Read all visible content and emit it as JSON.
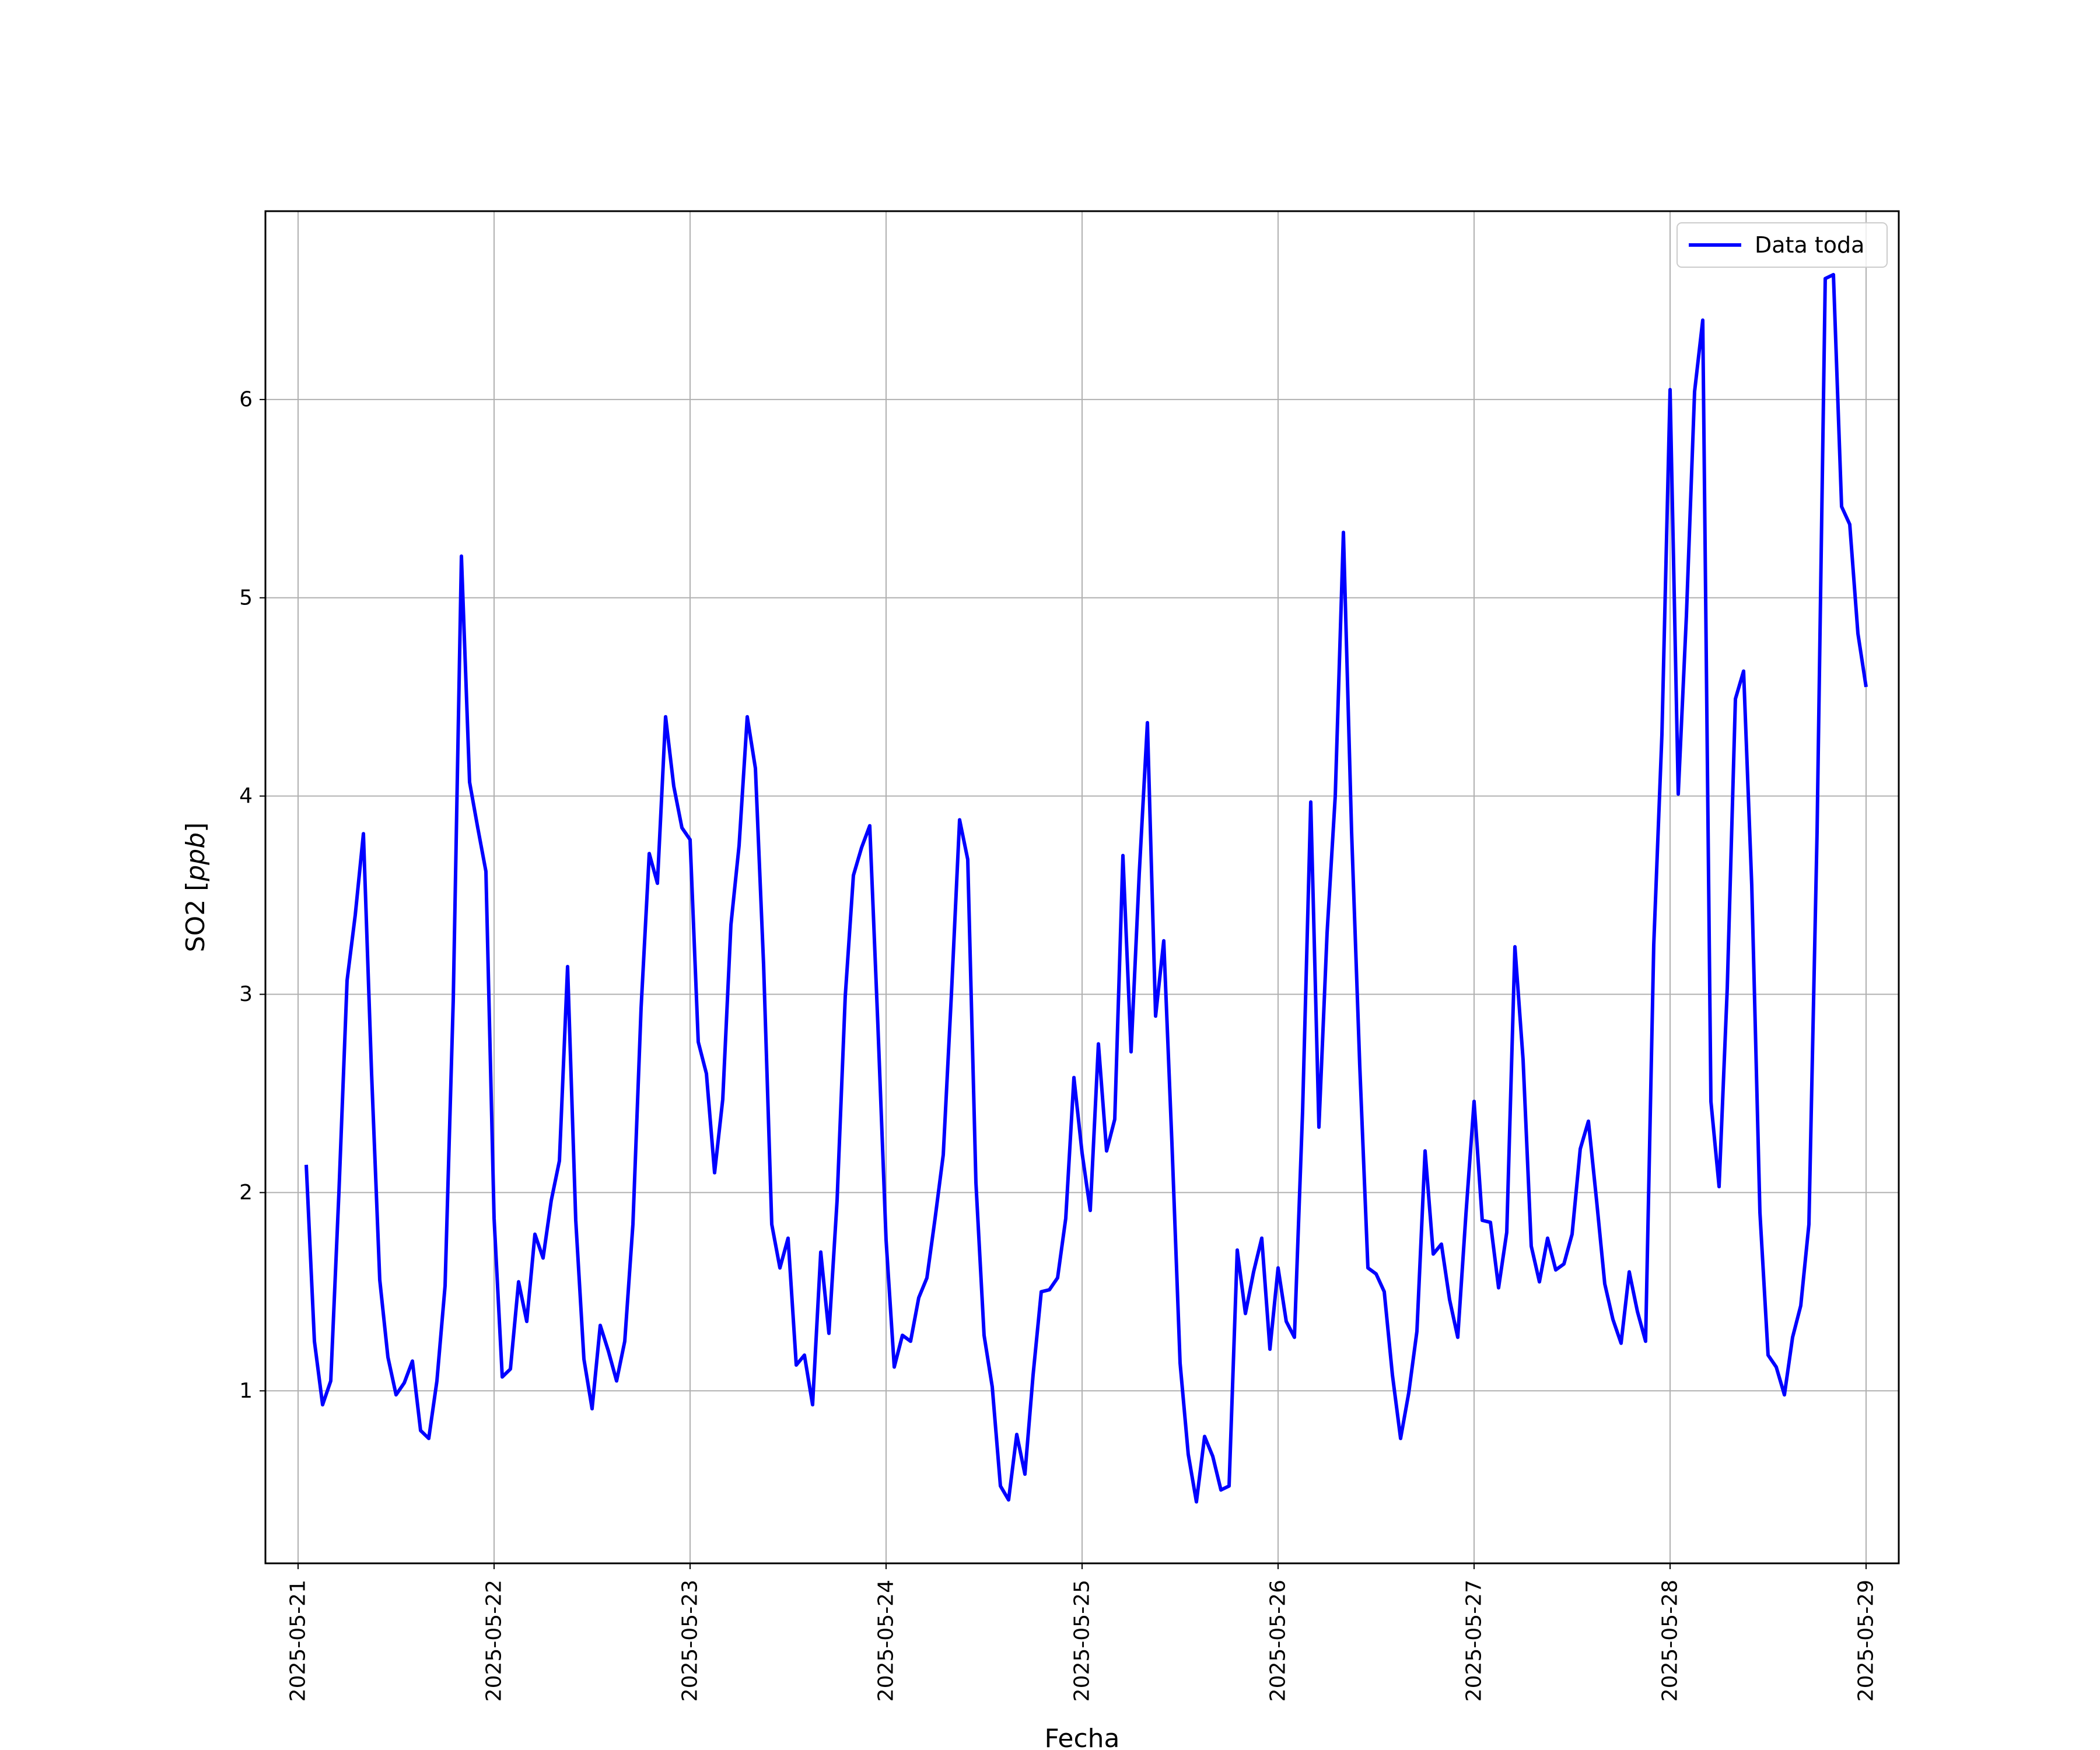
{
  "chart_data": {
    "type": "line",
    "title": "",
    "xlabel": "Fecha",
    "ylabel": "SO2",
    "ylabel_unit": "ppb",
    "xlim": [
      "2025-05-20T20:00",
      "2025-05-29T04:00"
    ],
    "ylim": [
      0.13,
      6.95
    ],
    "x_ticks": [
      "2025-05-21",
      "2025-05-22",
      "2025-05-23",
      "2025-05-24",
      "2025-05-25",
      "2025-05-26",
      "2025-05-27",
      "2025-05-28",
      "2025-05-29"
    ],
    "y_ticks": [
      1,
      2,
      3,
      4,
      5,
      6
    ],
    "grid": true,
    "legend_position": "top-right",
    "series": [
      {
        "name": "Data toda",
        "color": "#0000ff",
        "x": [
          "2025-05-21T01:00",
          "2025-05-21T02:00",
          "2025-05-21T03:00",
          "2025-05-21T04:00",
          "2025-05-21T05:00",
          "2025-05-21T06:00",
          "2025-05-21T07:00",
          "2025-05-21T08:00",
          "2025-05-21T09:00",
          "2025-05-21T10:00",
          "2025-05-21T11:00",
          "2025-05-21T12:00",
          "2025-05-21T13:00",
          "2025-05-21T14:00",
          "2025-05-21T15:00",
          "2025-05-21T16:00",
          "2025-05-21T17:00",
          "2025-05-21T18:00",
          "2025-05-21T19:00",
          "2025-05-21T20:00",
          "2025-05-21T21:00",
          "2025-05-21T22:00",
          "2025-05-21T23:00",
          "2025-05-22T00:00",
          "2025-05-22T01:00",
          "2025-05-22T02:00",
          "2025-05-22T03:00",
          "2025-05-22T04:00",
          "2025-05-22T05:00",
          "2025-05-22T06:00",
          "2025-05-22T07:00",
          "2025-05-22T08:00",
          "2025-05-22T09:00",
          "2025-05-22T10:00",
          "2025-05-22T11:00",
          "2025-05-22T12:00",
          "2025-05-22T13:00",
          "2025-05-22T14:00",
          "2025-05-22T15:00",
          "2025-05-22T16:00",
          "2025-05-22T17:00",
          "2025-05-22T18:00",
          "2025-05-22T19:00",
          "2025-05-22T20:00",
          "2025-05-22T21:00",
          "2025-05-22T22:00",
          "2025-05-22T23:00",
          "2025-05-23T00:00",
          "2025-05-23T01:00",
          "2025-05-23T02:00",
          "2025-05-23T03:00",
          "2025-05-23T04:00",
          "2025-05-23T05:00",
          "2025-05-23T06:00",
          "2025-05-23T07:00",
          "2025-05-23T08:00",
          "2025-05-23T09:00",
          "2025-05-23T10:00",
          "2025-05-23T11:00",
          "2025-05-23T12:00",
          "2025-05-23T13:00",
          "2025-05-23T14:00",
          "2025-05-23T15:00",
          "2025-05-23T16:00",
          "2025-05-23T17:00",
          "2025-05-23T18:00",
          "2025-05-23T19:00",
          "2025-05-23T20:00",
          "2025-05-23T21:00",
          "2025-05-23T22:00",
          "2025-05-23T23:00",
          "2025-05-24T00:00",
          "2025-05-24T01:00",
          "2025-05-24T02:00",
          "2025-05-24T03:00",
          "2025-05-24T04:00",
          "2025-05-24T05:00",
          "2025-05-24T06:00",
          "2025-05-24T07:00",
          "2025-05-24T08:00",
          "2025-05-24T09:00",
          "2025-05-24T10:00",
          "2025-05-24T11:00",
          "2025-05-24T12:00",
          "2025-05-24T13:00",
          "2025-05-24T14:00",
          "2025-05-24T15:00",
          "2025-05-24T16:00",
          "2025-05-24T17:00",
          "2025-05-24T18:00",
          "2025-05-24T19:00",
          "2025-05-24T20:00",
          "2025-05-24T21:00",
          "2025-05-24T22:00",
          "2025-05-24T23:00",
          "2025-05-25T00:00",
          "2025-05-25T01:00",
          "2025-05-25T02:00",
          "2025-05-25T03:00",
          "2025-05-25T04:00",
          "2025-05-25T05:00",
          "2025-05-25T06:00",
          "2025-05-25T07:00",
          "2025-05-25T08:00",
          "2025-05-25T09:00",
          "2025-05-25T10:00",
          "2025-05-25T11:00",
          "2025-05-25T12:00",
          "2025-05-25T13:00",
          "2025-05-25T14:00",
          "2025-05-25T15:00",
          "2025-05-25T16:00",
          "2025-05-25T17:00",
          "2025-05-25T18:00",
          "2025-05-25T19:00",
          "2025-05-25T20:00",
          "2025-05-25T21:00",
          "2025-05-25T22:00",
          "2025-05-25T23:00",
          "2025-05-26T00:00",
          "2025-05-26T01:00",
          "2025-05-26T02:00",
          "2025-05-26T03:00",
          "2025-05-26T04:00",
          "2025-05-26T05:00",
          "2025-05-26T06:00",
          "2025-05-26T07:00",
          "2025-05-26T08:00",
          "2025-05-26T09:00",
          "2025-05-26T10:00",
          "2025-05-26T11:00",
          "2025-05-26T12:00",
          "2025-05-26T13:00",
          "2025-05-26T14:00",
          "2025-05-26T15:00",
          "2025-05-26T16:00",
          "2025-05-26T17:00",
          "2025-05-26T18:00",
          "2025-05-26T19:00",
          "2025-05-26T20:00",
          "2025-05-26T21:00",
          "2025-05-26T22:00",
          "2025-05-26T23:00",
          "2025-05-27T00:00",
          "2025-05-27T01:00",
          "2025-05-27T02:00",
          "2025-05-27T03:00",
          "2025-05-27T04:00",
          "2025-05-27T05:00",
          "2025-05-27T06:00",
          "2025-05-27T07:00",
          "2025-05-27T08:00",
          "2025-05-27T09:00",
          "2025-05-27T10:00",
          "2025-05-27T11:00",
          "2025-05-27T12:00",
          "2025-05-27T13:00",
          "2025-05-27T14:00",
          "2025-05-27T15:00",
          "2025-05-27T16:00",
          "2025-05-27T17:00",
          "2025-05-27T18:00",
          "2025-05-27T19:00",
          "2025-05-27T20:00",
          "2025-05-27T21:00",
          "2025-05-27T22:00",
          "2025-05-27T23:00",
          "2025-05-28T00:00",
          "2025-05-28T01:00",
          "2025-05-28T02:00",
          "2025-05-28T03:00",
          "2025-05-28T04:00",
          "2025-05-28T05:00",
          "2025-05-28T06:00",
          "2025-05-28T07:00",
          "2025-05-28T08:00",
          "2025-05-28T09:00",
          "2025-05-28T10:00",
          "2025-05-28T11:00",
          "2025-05-28T12:00",
          "2025-05-28T13:00",
          "2025-05-28T14:00",
          "2025-05-28T15:00",
          "2025-05-28T16:00",
          "2025-05-28T17:00",
          "2025-05-28T18:00",
          "2025-05-28T19:00",
          "2025-05-28T20:00",
          "2025-05-28T21:00",
          "2025-05-28T22:00",
          "2025-05-28T23:00",
          "2025-05-29T00:00"
        ],
        "values": [
          2.14,
          1.25,
          0.93,
          1.05,
          2.0,
          3.07,
          3.4,
          3.81,
          2.6,
          1.56,
          1.17,
          0.98,
          1.04,
          1.15,
          0.8,
          0.76,
          1.05,
          1.53,
          2.97,
          5.21,
          4.07,
          3.84,
          3.62,
          1.87,
          1.07,
          1.11,
          1.55,
          1.35,
          1.79,
          1.67,
          1.96,
          2.16,
          3.14,
          1.86,
          1.16,
          0.91,
          1.33,
          1.2,
          1.05,
          1.25,
          1.84,
          2.93,
          3.71,
          3.56,
          4.4,
          4.05,
          3.84,
          3.78,
          2.76,
          2.6,
          2.1,
          2.47,
          3.35,
          3.75,
          4.4,
          4.14,
          3.15,
          1.84,
          1.62,
          1.77,
          1.13,
          1.18,
          0.93,
          1.7,
          1.29,
          1.96,
          2.99,
          3.6,
          3.74,
          3.85,
          2.84,
          1.76,
          1.12,
          1.28,
          1.25,
          1.47,
          1.57,
          1.87,
          2.19,
          3.0,
          3.88,
          3.68,
          2.05,
          1.28,
          1.02,
          0.52,
          0.45,
          0.78,
          0.58,
          1.08,
          1.5,
          1.51,
          1.57,
          1.87,
          2.58,
          2.2,
          1.91,
          2.75,
          2.21,
          2.37,
          3.7,
          2.71,
          3.61,
          4.37,
          2.89,
          3.27,
          2.25,
          1.14,
          0.68,
          0.44,
          0.77,
          0.67,
          0.5,
          0.52,
          1.71,
          1.39,
          1.6,
          1.77,
          1.21,
          1.62,
          1.35,
          1.27,
          2.41,
          3.97,
          2.33,
          3.31,
          4.0,
          5.33,
          3.82,
          2.64,
          1.62,
          1.59,
          1.5,
          1.08,
          0.76,
          0.99,
          1.3,
          2.21,
          1.69,
          1.74,
          1.46,
          1.27,
          1.89,
          2.46,
          1.86,
          1.85,
          1.52,
          1.8,
          3.24,
          2.67,
          1.73,
          1.55,
          1.77,
          1.61,
          1.64,
          1.79,
          2.22,
          2.36,
          1.96,
          1.54,
          1.36,
          1.24,
          1.6,
          1.4,
          1.25,
          3.25,
          4.31,
          6.05,
          4.01,
          4.91,
          6.04,
          6.4,
          2.46,
          2.03,
          3.03,
          4.49,
          4.63,
          3.55,
          1.9,
          1.18,
          1.12,
          0.98,
          1.27,
          1.43,
          1.84,
          3.82,
          6.61,
          6.63,
          5.46,
          5.37,
          4.82,
          4.55
        ]
      }
    ]
  }
}
